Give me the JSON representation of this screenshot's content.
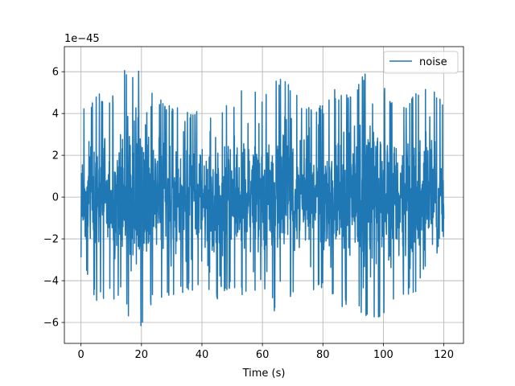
{
  "chart_data": {
    "type": "line",
    "xlabel": "Time (s)",
    "ylabel": "",
    "offset_label": "1e−45",
    "xlim": [
      -5.5,
      126.5
    ],
    "ylim": [
      -7.0,
      7.2
    ],
    "xticks": [
      0,
      20,
      40,
      60,
      80,
      100,
      120
    ],
    "yticks": [
      -6,
      -4,
      -2,
      0,
      2,
      4,
      6
    ],
    "xtick_labels": [
      "0",
      "20",
      "40",
      "60",
      "80",
      "100",
      "120"
    ],
    "ytick_labels": [
      "−6",
      "−4",
      "−2",
      "0",
      "2",
      "4",
      "6"
    ],
    "grid": true,
    "legend_position": "upper right",
    "series": [
      {
        "name": "noise",
        "color": "#1f77b4",
        "x_range": [
          0,
          120
        ],
        "samples": 1600,
        "envelope_x": [
          0,
          5,
          10,
          15,
          20,
          25,
          30,
          35,
          40,
          45,
          50,
          55,
          60,
          65,
          70,
          75,
          80,
          85,
          90,
          95,
          100,
          105,
          110,
          115,
          120
        ],
        "envelope_max": [
          4.2,
          5.0,
          4.7,
          6.5,
          6.0,
          4.8,
          4.4,
          4.3,
          4.1,
          4.3,
          4.5,
          5.8,
          4.7,
          6.0,
          5.2,
          4.3,
          4.4,
          5.5,
          4.8,
          6.4,
          5.3,
          4.5,
          4.8,
          5.8,
          4.3
        ],
        "envelope_min": [
          -3.0,
          -5.1,
          -4.8,
          -5.6,
          -6.2,
          -4.8,
          -4.9,
          -4.5,
          -4.6,
          -4.9,
          -4.3,
          -5.0,
          -4.2,
          -5.9,
          -4.8,
          -4.9,
          -4.4,
          -5.4,
          -5.0,
          -6.3,
          -5.9,
          -4.8,
          -4.7,
          -5.8,
          -3.5
        ]
      }
    ]
  }
}
